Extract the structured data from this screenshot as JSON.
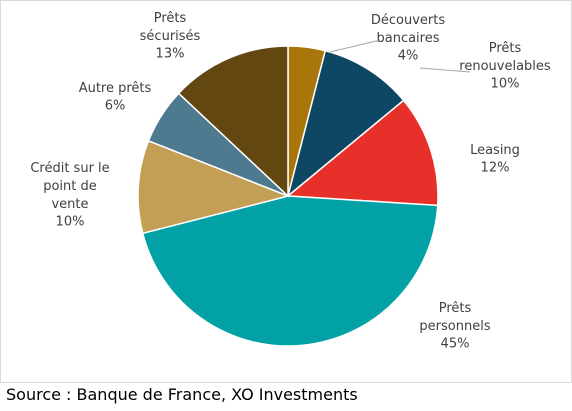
{
  "chart_data": {
    "type": "pie",
    "categories": [
      "Découverts\nbancaires",
      "Prêts\nrenouvelables",
      "Leasing",
      "Prêts\npersonnels",
      "Crédit sur le\npoint de\nvente",
      "Autre prêts",
      "Prêts\nsécurisés"
    ],
    "values": [
      4,
      10,
      12,
      45,
      10,
      6,
      13
    ],
    "value_labels": [
      "4%",
      "10%",
      "12%",
      "45%",
      "10%",
      "6%",
      "13%"
    ],
    "colors": [
      "#a8760a",
      "#0d4763",
      "#e8302a",
      "#02a1a6",
      "#c39f56",
      "#4e7a90",
      "#624810"
    ]
  },
  "source": "Source : Banque de France, XO Investments"
}
